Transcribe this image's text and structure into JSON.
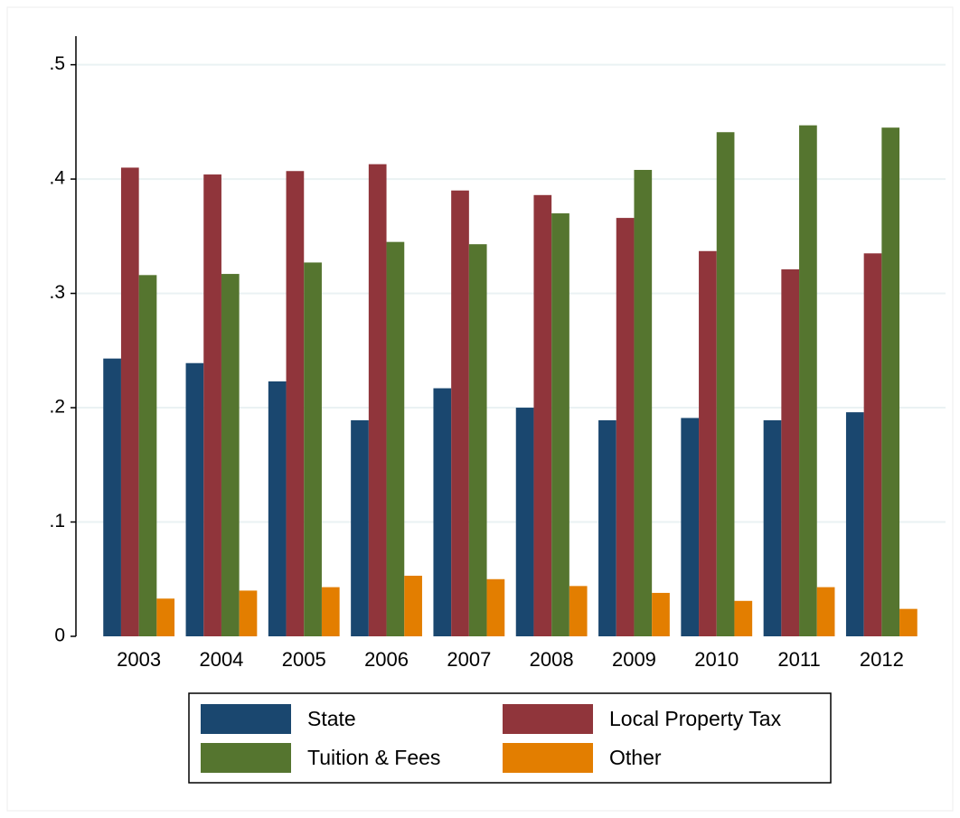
{
  "chart_data": {
    "type": "bar",
    "categories": [
      "2003",
      "2004",
      "2005",
      "2006",
      "2007",
      "2008",
      "2009",
      "2010",
      "2011",
      "2012"
    ],
    "series": [
      {
        "name": "State",
        "color": "#1a476f",
        "values": [
          0.243,
          0.239,
          0.223,
          0.189,
          0.217,
          0.2,
          0.189,
          0.191,
          0.189,
          0.196
        ]
      },
      {
        "name": "Local Property Tax",
        "color": "#90353b",
        "values": [
          0.41,
          0.404,
          0.407,
          0.413,
          0.39,
          0.386,
          0.366,
          0.337,
          0.321,
          0.335
        ]
      },
      {
        "name": "Tuition & Fees",
        "color": "#55752f",
        "values": [
          0.316,
          0.317,
          0.327,
          0.345,
          0.343,
          0.37,
          0.408,
          0.441,
          0.447,
          0.445
        ]
      },
      {
        "name": "Other",
        "color": "#e37e00",
        "values": [
          0.033,
          0.04,
          0.043,
          0.053,
          0.05,
          0.044,
          0.038,
          0.031,
          0.043,
          0.024
        ]
      }
    ],
    "ylim": [
      0,
      0.525
    ],
    "yticks": [
      0,
      {
        "value": 0.1,
        "label": ".1"
      },
      {
        "value": 0.2,
        "label": ".2"
      },
      {
        "value": 0.3,
        "label": ".3"
      },
      {
        "value": 0.4,
        "label": ".4"
      },
      {
        "value": 0.5,
        "label": ".5"
      }
    ],
    "grid": true,
    "legend_position": "bottom",
    "legend_columns": 2
  }
}
